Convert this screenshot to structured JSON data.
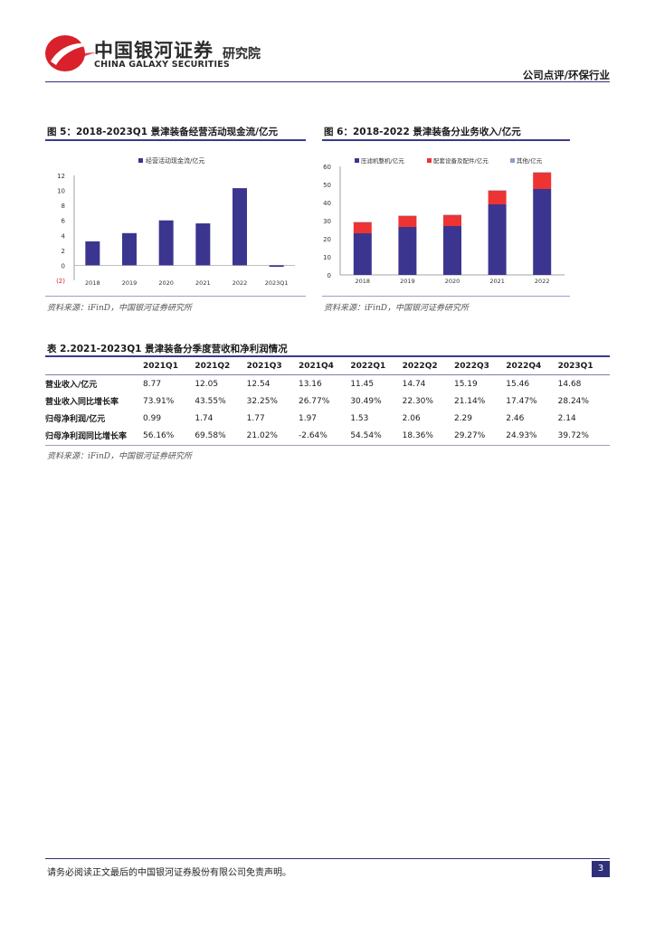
{
  "header": {
    "brand_cn": "中国银河证券",
    "brand_en": "CHINA GALAXY SECURITIES",
    "institute": "研究院",
    "category": "公司点评/环保行业"
  },
  "figure5": {
    "title": "图 5：2018-2023Q1 景津装备经营活动现金流/亿元",
    "source": "资料来源：iFinD，中国银河证券研究所",
    "chart_data": {
      "type": "bar",
      "categories": [
        "2018",
        "2019",
        "2020",
        "2021",
        "2022",
        "2023Q1"
      ],
      "series": [
        {
          "name": "经营活动现金流/亿元",
          "values": [
            3.2,
            4.3,
            6.0,
            5.6,
            10.3,
            -0.2
          ],
          "color": "#3b3590"
        }
      ],
      "ylim": [
        -2,
        12
      ],
      "yticks": [
        -2,
        0,
        2,
        4,
        6,
        8,
        10,
        12
      ],
      "ytick_labels": [
        "(2)",
        "0",
        "2",
        "4",
        "6",
        "8",
        "10",
        "12"
      ],
      "legend": "top-center"
    }
  },
  "figure6": {
    "title": "图 6：2018-2022 景津装备分业务收入/亿元",
    "source": "资料来源：iFinD，中国银河证券研究所",
    "chart_data": {
      "type": "bar",
      "stacked": true,
      "categories": [
        "2018",
        "2019",
        "2020",
        "2021",
        "2022"
      ],
      "series": [
        {
          "name": "压滤机整机/亿元",
          "values": [
            23,
            26.5,
            27,
            39,
            47.5
          ],
          "color": "#3b3590"
        },
        {
          "name": "配套设备及配件/亿元",
          "values": [
            6,
            6.0,
            6.0,
            7.5,
            9.0
          ],
          "color": "#ee3333"
        },
        {
          "name": "其他/亿元",
          "values": [
            0.3,
            0.3,
            0.3,
            0.3,
            0.3
          ],
          "color": "#8ca0c8"
        }
      ],
      "ylim": [
        0,
        60
      ],
      "yticks": [
        0,
        10,
        20,
        30,
        40,
        50,
        60
      ],
      "legend": "top"
    }
  },
  "table2": {
    "title": "表 2.2021-2023Q1 景津装备分季度营收和净利润情况",
    "columns": [
      "",
      "2021Q1",
      "2021Q2",
      "2021Q3",
      "2021Q4",
      "2022Q1",
      "2022Q2",
      "2022Q3",
      "2022Q4",
      "2023Q1"
    ],
    "rows": [
      {
        "label": "营业收入/亿元",
        "values": [
          "8.77",
          "12.05",
          "12.54",
          "13.16",
          "11.45",
          "14.74",
          "15.19",
          "15.46",
          "14.68"
        ]
      },
      {
        "label": "营业收入同比增长率",
        "values": [
          "73.91%",
          "43.55%",
          "32.25%",
          "26.77%",
          "30.49%",
          "22.30%",
          "21.14%",
          "17.47%",
          "28.24%"
        ]
      },
      {
        "label": "归母净利润/亿元",
        "values": [
          "0.99",
          "1.74",
          "1.77",
          "1.97",
          "1.53",
          "2.06",
          "2.29",
          "2.46",
          "2.14"
        ]
      },
      {
        "label": "归母净利润同比增长率",
        "values": [
          "56.16%",
          "69.58%",
          "21.02%",
          "-2.64%",
          "54.54%",
          "18.36%",
          "29.27%",
          "24.93%",
          "39.72%"
        ]
      }
    ],
    "source": "资料来源：iFinD，中国银河证券研究所"
  },
  "footer": {
    "disclaimer": "请务必阅读正文最后的中国银河证券股份有限公司免责声明。",
    "page": "3"
  }
}
